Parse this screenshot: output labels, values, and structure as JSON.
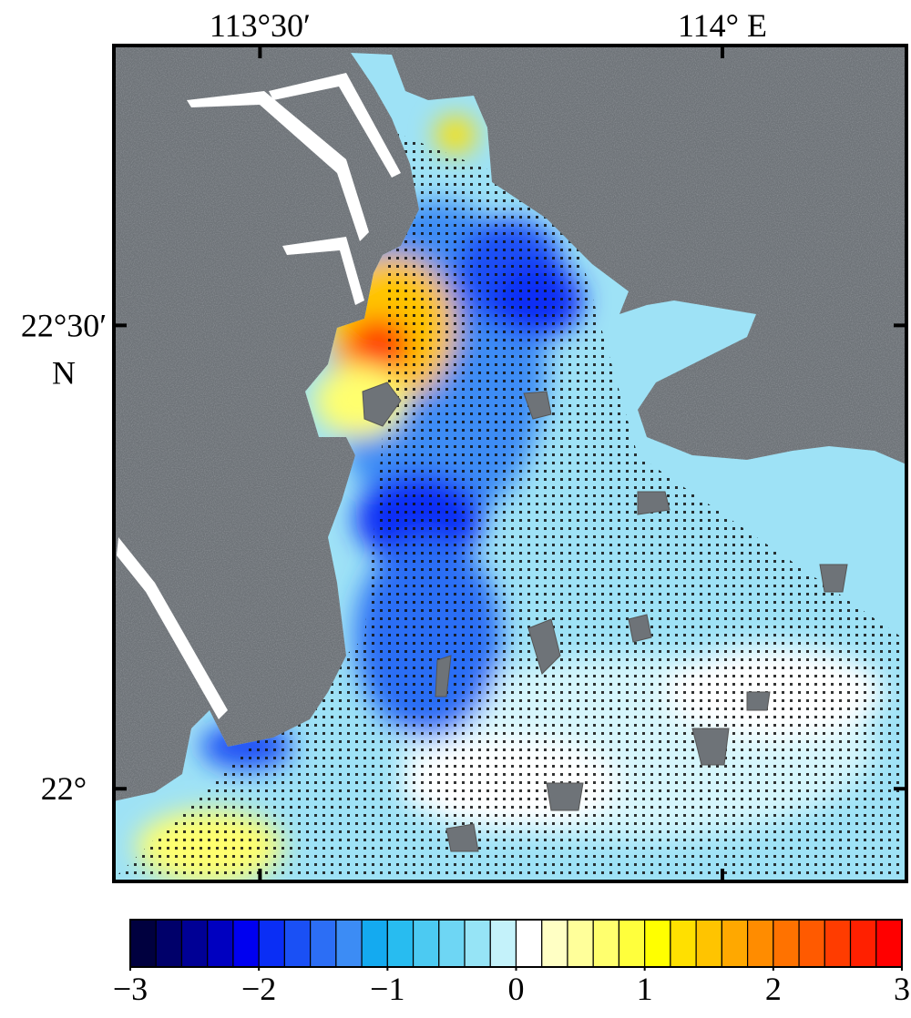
{
  "map": {
    "lon_ticks": [
      {
        "value": 113.5,
        "label": "113°30′"
      },
      {
        "value": 114,
        "label": "114° E"
      }
    ],
    "lat_ticks": [
      {
        "value": 22.5,
        "label": "22°30′"
      },
      {
        "value": 22,
        "label": "22°"
      }
    ],
    "lat_unit": "N",
    "xlim": [
      113.342,
      114.199
    ],
    "ylim": [
      21.9,
      22.802
    ]
  },
  "colorbar": {
    "lim": [
      -3,
      3
    ],
    "ticks": [
      {
        "value": -3,
        "label": "−3"
      },
      {
        "value": -2,
        "label": "−2"
      },
      {
        "value": -1,
        "label": "−1"
      },
      0,
      1,
      2,
      3
    ],
    "colors": [
      "#00003f",
      "#00006a",
      "#000095",
      "#0000c0",
      "#0000f0",
      "#0a2ef5",
      "#1a50f5",
      "#2c6ef5",
      "#3c8cf5",
      "#14aaf0",
      "#28bcf0",
      "#4ccaf2",
      "#6ed6f4",
      "#96e4f6",
      "#c4f2fa",
      "#ffffff",
      "#ffffc4",
      "#ffff9a",
      "#ffff6e",
      "#ffff3c",
      "#ffff00",
      "#ffe000",
      "#ffc400",
      "#ffa800",
      "#ff8c00",
      "#ff7200",
      "#ff5a00",
      "#ff3c00",
      "#ff2000",
      "#ff0000"
    ]
  }
}
